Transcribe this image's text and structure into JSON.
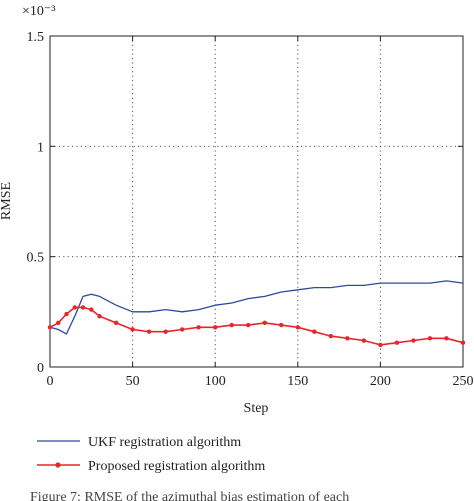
{
  "chart_data": {
    "type": "line",
    "title": "",
    "xlabel": "Step",
    "ylabel": "RMSE",
    "exponent_label": "×10⁻³",
    "xlim": [
      0,
      250
    ],
    "ylim": [
      0,
      1.5
    ],
    "xticks": [
      0,
      50,
      100,
      150,
      200,
      250
    ],
    "yticks": [
      0,
      0.5,
      1,
      1.5
    ],
    "ytick_labels": [
      "0",
      "0.5",
      "1",
      "1.5"
    ],
    "grid": "dotted",
    "legend_position": "below",
    "x": [
      0,
      5,
      10,
      15,
      20,
      25,
      30,
      40,
      50,
      60,
      70,
      80,
      90,
      100,
      110,
      120,
      130,
      140,
      150,
      160,
      170,
      180,
      190,
      200,
      210,
      220,
      230,
      240,
      250
    ],
    "series": [
      {
        "name": "UKF registration algorithm",
        "color": "#2e4a9e",
        "marker": "none",
        "values": [
          0.18,
          0.17,
          0.15,
          0.23,
          0.32,
          0.33,
          0.32,
          0.28,
          0.25,
          0.25,
          0.26,
          0.25,
          0.26,
          0.28,
          0.29,
          0.31,
          0.32,
          0.34,
          0.35,
          0.36,
          0.36,
          0.37,
          0.37,
          0.38,
          0.38,
          0.38,
          0.38,
          0.39,
          0.38
        ]
      },
      {
        "name": "Proposed registration algorithm",
        "color": "#e8262a",
        "marker": "dot",
        "values": [
          0.18,
          0.2,
          0.24,
          0.27,
          0.27,
          0.26,
          0.23,
          0.2,
          0.17,
          0.16,
          0.16,
          0.17,
          0.18,
          0.18,
          0.19,
          0.19,
          0.2,
          0.19,
          0.18,
          0.16,
          0.14,
          0.13,
          0.12,
          0.1,
          0.11,
          0.12,
          0.13,
          0.13,
          0.11
        ]
      }
    ]
  },
  "caption": "Figure 7: RMSE of the azimuthal bias estimation of each"
}
